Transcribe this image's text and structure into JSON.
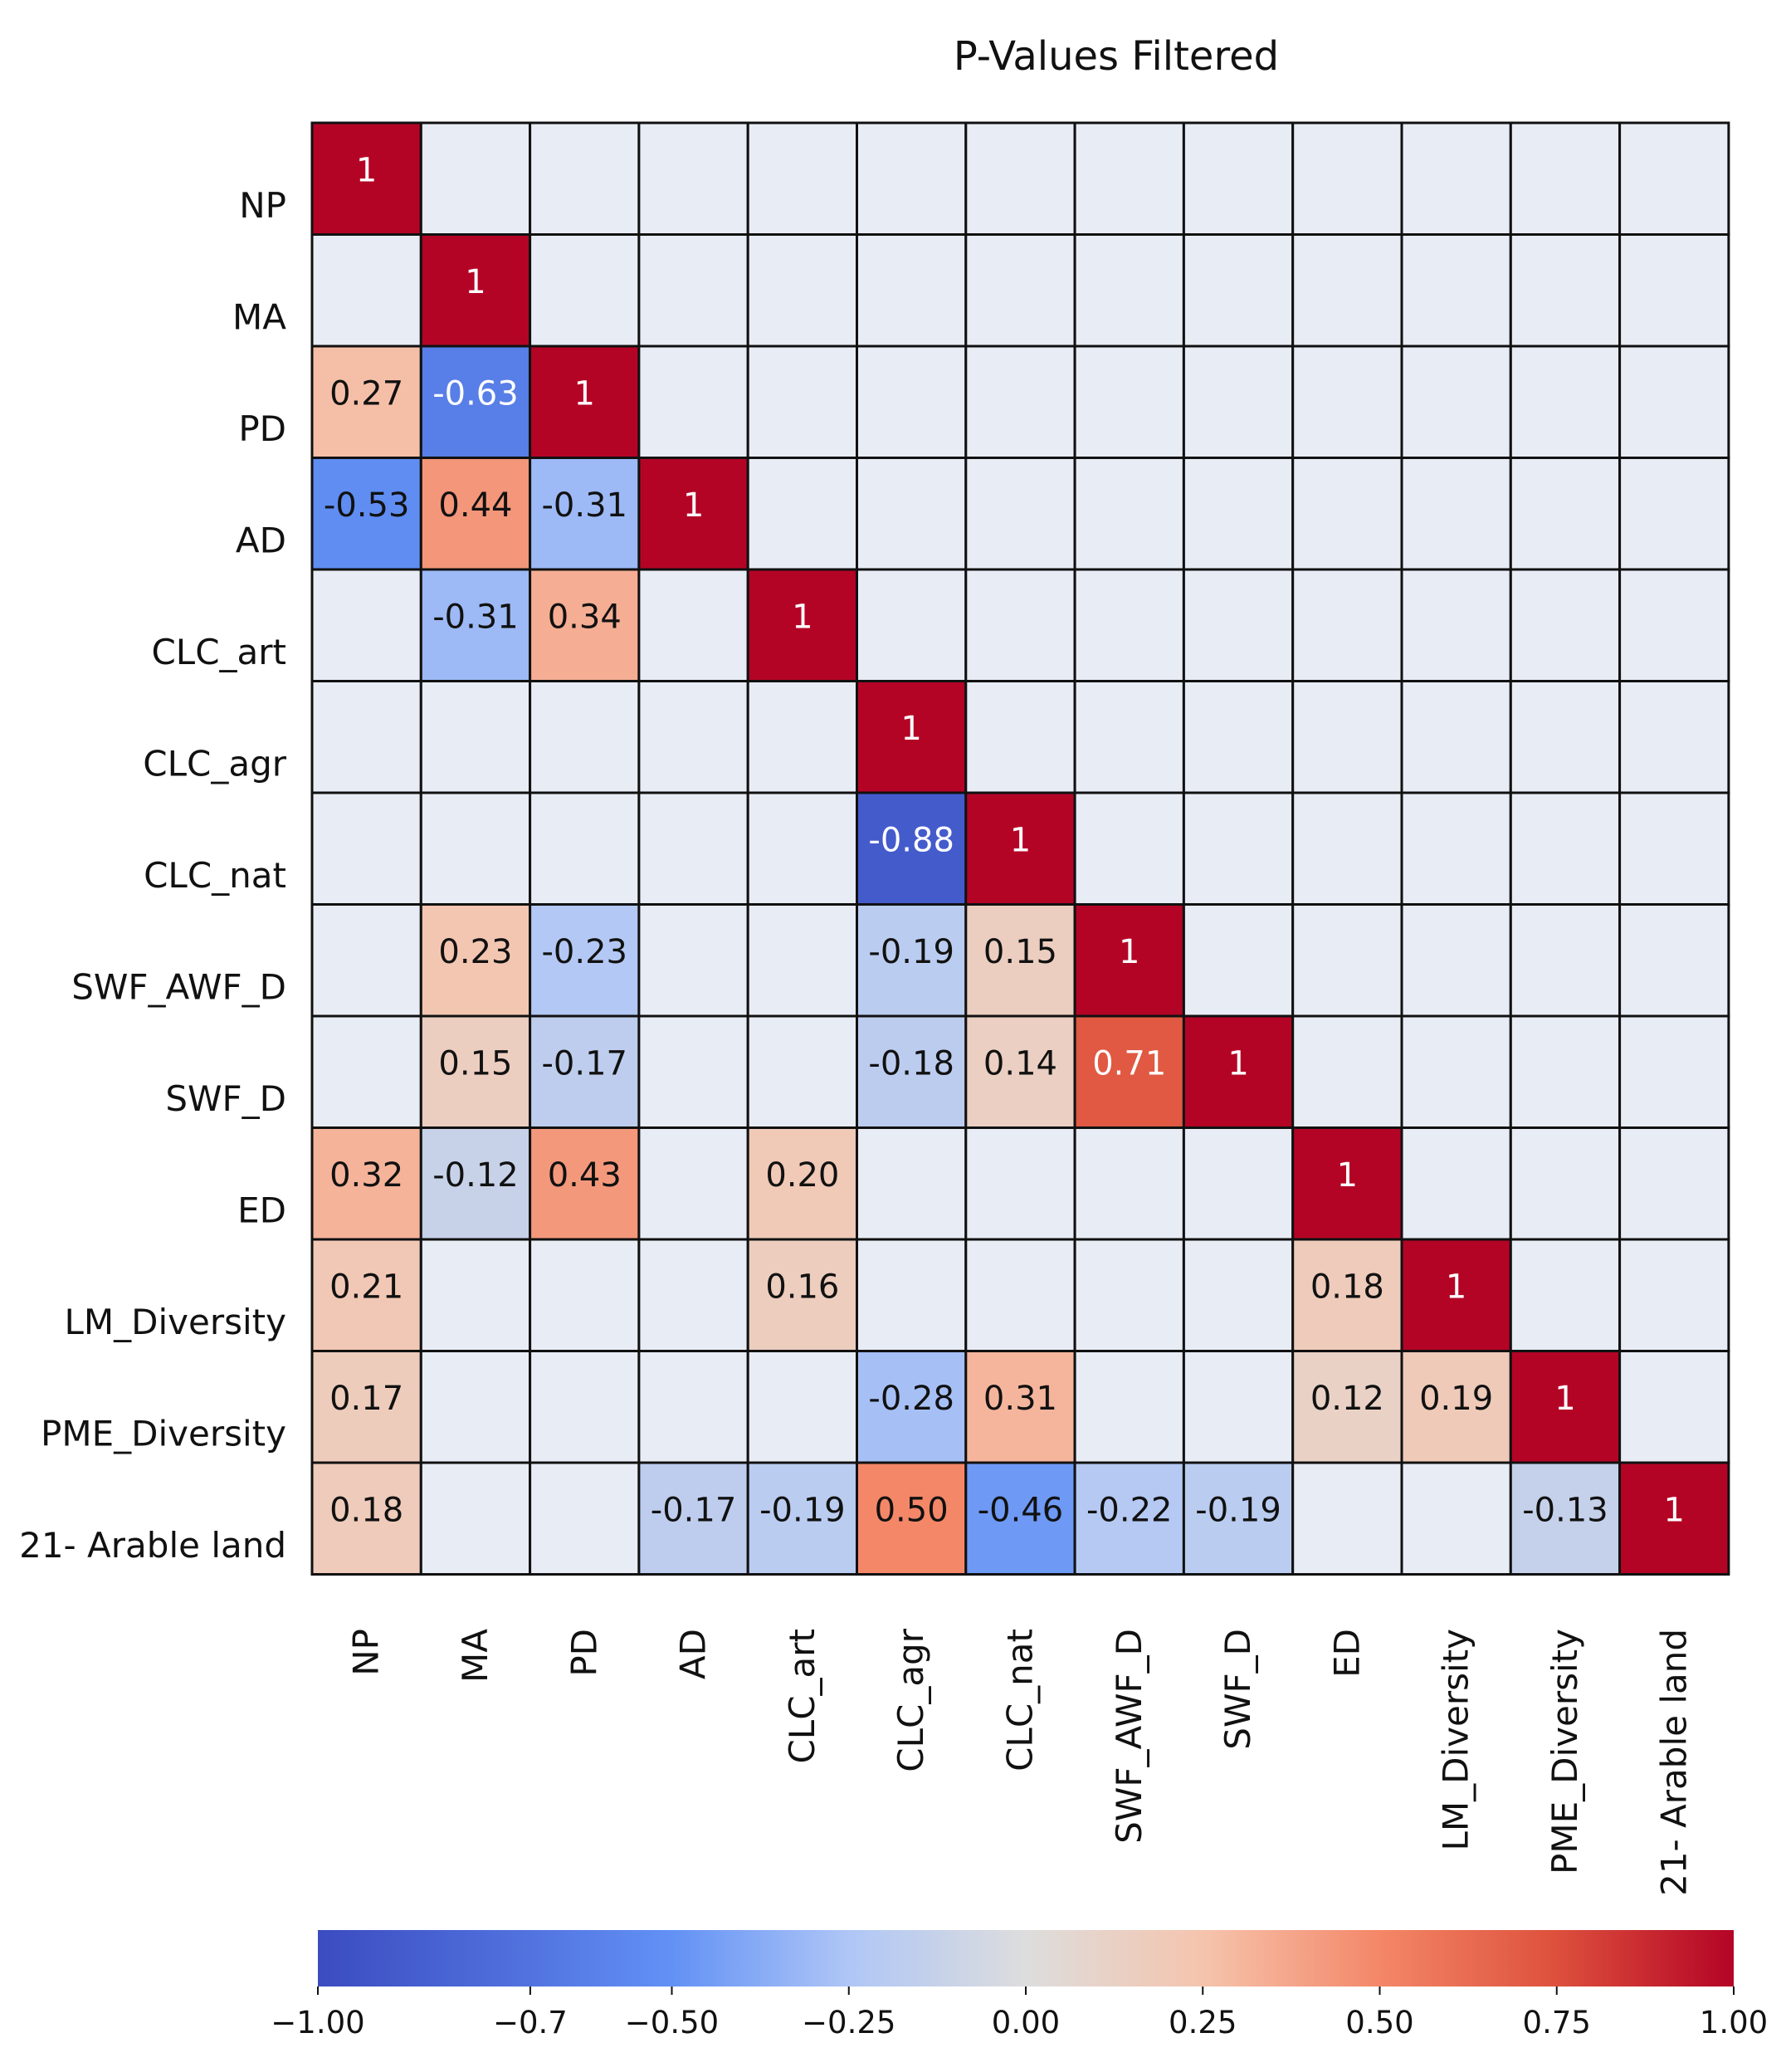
{
  "chart_data": {
    "type": "heatmap",
    "title": "P-Values Filtered",
    "rows": [
      "NP",
      "MA",
      "PD",
      "AD",
      "CLC_art",
      "CLC_agr",
      "CLC_nat",
      "SWF_AWF_D",
      "SWF_D",
      "ED",
      "LM_Diversity",
      "PME_Diversity",
      "21- Arable land"
    ],
    "columns": [
      "NP",
      "MA",
      "PD",
      "AD",
      "CLC_art",
      "CLC_agr",
      "CLC_nat",
      "SWF_AWF_D",
      "SWF_D",
      "ED",
      "LM_Diversity",
      "PME_Diversity",
      "21- Arable land"
    ],
    "values": [
      [
        1,
        null,
        null,
        null,
        null,
        null,
        null,
        null,
        null,
        null,
        null,
        null,
        null
      ],
      [
        null,
        1,
        null,
        null,
        null,
        null,
        null,
        null,
        null,
        null,
        null,
        null,
        null
      ],
      [
        0.27,
        -0.63,
        1,
        null,
        null,
        null,
        null,
        null,
        null,
        null,
        null,
        null,
        null
      ],
      [
        -0.53,
        0.44,
        -0.31,
        1,
        null,
        null,
        null,
        null,
        null,
        null,
        null,
        null,
        null
      ],
      [
        null,
        -0.31,
        0.34,
        null,
        1,
        null,
        null,
        null,
        null,
        null,
        null,
        null,
        null
      ],
      [
        null,
        null,
        null,
        null,
        null,
        1,
        null,
        null,
        null,
        null,
        null,
        null,
        null
      ],
      [
        null,
        null,
        null,
        null,
        null,
        -0.88,
        1,
        null,
        null,
        null,
        null,
        null,
        null
      ],
      [
        null,
        0.23,
        -0.23,
        null,
        null,
        -0.19,
        0.15,
        1,
        null,
        null,
        null,
        null,
        null
      ],
      [
        null,
        0.15,
        -0.17,
        null,
        null,
        -0.18,
        0.14,
        0.71,
        1,
        null,
        null,
        null,
        null
      ],
      [
        0.32,
        -0.12,
        0.43,
        null,
        0.2,
        null,
        null,
        null,
        null,
        1,
        null,
        null,
        null
      ],
      [
        0.21,
        null,
        null,
        null,
        0.16,
        null,
        null,
        null,
        null,
        0.18,
        1,
        null,
        null
      ],
      [
        0.17,
        null,
        null,
        null,
        null,
        -0.28,
        0.31,
        null,
        null,
        0.12,
        0.19,
        1,
        null
      ],
      [
        0.18,
        null,
        null,
        -0.17,
        -0.19,
        0.5,
        -0.46,
        -0.22,
        -0.19,
        null,
        null,
        -0.13,
        1
      ]
    ],
    "cell_labels": [
      [
        "1",
        "",
        "",
        "",
        "",
        "",
        "",
        "",
        "",
        "",
        "",
        "",
        ""
      ],
      [
        "",
        "1",
        "",
        "",
        "",
        "",
        "",
        "",
        "",
        "",
        "",
        "",
        ""
      ],
      [
        "0.27",
        "-0.63",
        "1",
        "",
        "",
        "",
        "",
        "",
        "",
        "",
        "",
        "",
        ""
      ],
      [
        "-0.53",
        "0.44",
        "-0.31",
        "1",
        "",
        "",
        "",
        "",
        "",
        "",
        "",
        "",
        ""
      ],
      [
        "",
        "-0.31",
        "0.34",
        "",
        "1",
        "",
        "",
        "",
        "",
        "",
        "",
        "",
        ""
      ],
      [
        "",
        "",
        "",
        "",
        "",
        "1",
        "",
        "",
        "",
        "",
        "",
        "",
        ""
      ],
      [
        "",
        "",
        "",
        "",
        "",
        "-0.88",
        "1",
        "",
        "",
        "",
        "",
        "",
        ""
      ],
      [
        "",
        "0.23",
        "-0.23",
        "",
        "",
        "-0.19",
        "0.15",
        "1",
        "",
        "",
        "",
        "",
        ""
      ],
      [
        "",
        "0.15",
        "-0.17",
        "",
        "",
        "-0.18",
        "0.14",
        "0.71",
        "1",
        "",
        "",
        "",
        ""
      ],
      [
        "0.32",
        "-0.12",
        "0.43",
        "",
        "0.20",
        "",
        "",
        "",
        "",
        "1",
        "",
        "",
        ""
      ],
      [
        "0.21",
        "",
        "",
        "",
        "0.16",
        "",
        "",
        "",
        "",
        "0.18",
        "1",
        "",
        ""
      ],
      [
        "0.17",
        "",
        "",
        "",
        "",
        "-0.28",
        "0.31",
        "",
        "",
        "0.12",
        "0.19",
        "1",
        ""
      ],
      [
        "0.18",
        "",
        "",
        "-0.17",
        "-0.19",
        "0.50",
        "-0.46",
        "-0.22",
        "-0.19",
        "",
        "",
        "-0.13",
        "1"
      ]
    ],
    "empty_cell_color": "#E8ECF5",
    "colormap": "coolwarm",
    "colorbar": {
      "orientation": "horizontal",
      "position": "bottom",
      "range": [
        -1,
        1
      ],
      "tick_labels": [
        "−1.00",
        "−0.7",
        "−0.50",
        "−0.25",
        "0.00",
        "0.25",
        "0.50",
        "0.75",
        "1.00"
      ],
      "tick_values": [
        -1,
        -0.7,
        -0.5,
        -0.25,
        0,
        0.25,
        0.5,
        0.75,
        1
      ]
    }
  }
}
